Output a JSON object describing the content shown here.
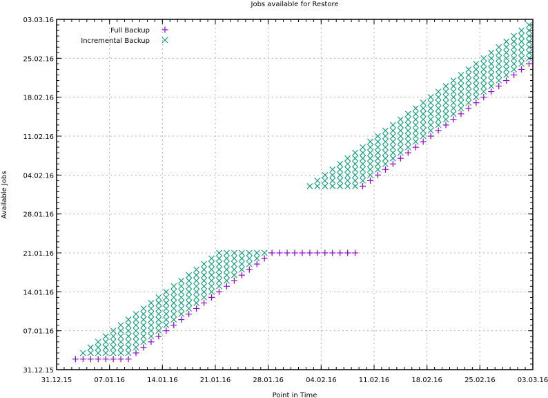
{
  "chart_data": {
    "type": "scatter",
    "title": "Jobs available for Restore",
    "xlabel": "Point in Time",
    "ylabel": "Available Jobs",
    "x_unit": "days since 31.12.15",
    "y_unit": "days since 31.12.15",
    "xlim": [
      0,
      63
    ],
    "ylim": [
      0,
      63
    ],
    "grid": true,
    "legend_position": "top-left",
    "x_ticks": [
      {
        "value": 0,
        "label": "31.12.15"
      },
      {
        "value": 7,
        "label": "07.01.16"
      },
      {
        "value": 14,
        "label": "14.01.16"
      },
      {
        "value": 21,
        "label": "21.01.16"
      },
      {
        "value": 28,
        "label": "28.01.16"
      },
      {
        "value": 35,
        "label": "04.02.16"
      },
      {
        "value": 42,
        "label": "11.02.16"
      },
      {
        "value": 49,
        "label": "18.02.16"
      },
      {
        "value": 56,
        "label": "25.02.16"
      },
      {
        "value": 63,
        "label": "03.03.16"
      }
    ],
    "y_ticks": [
      {
        "value": 0,
        "label": "31.12.15"
      },
      {
        "value": 7,
        "label": "07.01.16"
      },
      {
        "value": 14,
        "label": "14.01.16"
      },
      {
        "value": 21,
        "label": "21.01.16"
      },
      {
        "value": 28,
        "label": "28.01.16"
      },
      {
        "value": 35,
        "label": "04.02.16"
      },
      {
        "value": 42,
        "label": "11.02.16"
      },
      {
        "value": 49,
        "label": "18.02.16"
      },
      {
        "value": 56,
        "label": "25.02.16"
      },
      {
        "value": 63,
        "label": "03.03.16"
      }
    ],
    "series": [
      {
        "name": "Full Backup",
        "marker": "plus",
        "color": "#9400d3",
        "points": [
          [
            2.5,
            1.9
          ],
          [
            3.5,
            1.9
          ],
          [
            4.5,
            1.9
          ],
          [
            5.5,
            1.9
          ],
          [
            6.5,
            1.9
          ],
          [
            7.5,
            1.9
          ],
          [
            8.5,
            1.9
          ],
          [
            9.5,
            1.9
          ],
          [
            10.5,
            3
          ],
          [
            11.5,
            4
          ],
          [
            12.5,
            5
          ],
          [
            13.5,
            6
          ],
          [
            14.5,
            7
          ],
          [
            15.5,
            8
          ],
          [
            16.5,
            9
          ],
          [
            17.5,
            10
          ],
          [
            18.5,
            11
          ],
          [
            19.5,
            12
          ],
          [
            20.5,
            13
          ],
          [
            21.5,
            14
          ],
          [
            22.5,
            15
          ],
          [
            23.5,
            16
          ],
          [
            24.5,
            17
          ],
          [
            25.5,
            18
          ],
          [
            26.5,
            19
          ],
          [
            27.5,
            20
          ],
          [
            28.5,
            21
          ],
          [
            29.5,
            21
          ],
          [
            30.5,
            21
          ],
          [
            31.5,
            21
          ],
          [
            32.5,
            21
          ],
          [
            33.5,
            21
          ],
          [
            34.5,
            21
          ],
          [
            35.5,
            21
          ],
          [
            36.5,
            21
          ],
          [
            37.5,
            21
          ],
          [
            38.5,
            21
          ],
          [
            39.5,
            21
          ],
          [
            40.5,
            33
          ],
          [
            41.5,
            34
          ],
          [
            42.5,
            35
          ],
          [
            43.5,
            36
          ],
          [
            44.5,
            37
          ],
          [
            45.5,
            38
          ],
          [
            46.5,
            39
          ],
          [
            47.5,
            40
          ],
          [
            48.5,
            41
          ],
          [
            49.5,
            42
          ],
          [
            50.5,
            43
          ],
          [
            51.5,
            44
          ],
          [
            52.5,
            45
          ],
          [
            53.5,
            46
          ],
          [
            54.5,
            47
          ],
          [
            55.5,
            48
          ],
          [
            56.5,
            49
          ],
          [
            57.5,
            50
          ],
          [
            58.5,
            51
          ],
          [
            59.5,
            52
          ],
          [
            60.5,
            53
          ],
          [
            61.5,
            54
          ],
          [
            62.5,
            55
          ]
        ]
      },
      {
        "name": "Incremental Backup",
        "marker": "cross",
        "color": "#009e73",
        "columns_note": "each column: [x, bottom_y, top_y], one marker per day from bottom to top",
        "columns": [
          [
            3.5,
            2.9,
            3
          ],
          [
            4.5,
            2.9,
            4
          ],
          [
            5.5,
            2.9,
            5
          ],
          [
            6.5,
            2.9,
            6
          ],
          [
            7.5,
            2.9,
            7
          ],
          [
            8.5,
            2.9,
            8
          ],
          [
            9.5,
            2.9,
            9
          ],
          [
            10.5,
            4,
            10
          ],
          [
            11.5,
            5,
            11
          ],
          [
            12.5,
            6,
            12
          ],
          [
            13.5,
            7,
            13
          ],
          [
            14.5,
            8,
            14
          ],
          [
            15.5,
            9,
            15
          ],
          [
            16.5,
            10,
            16
          ],
          [
            17.5,
            11,
            17
          ],
          [
            18.5,
            12,
            18
          ],
          [
            19.5,
            13,
            19
          ],
          [
            20.5,
            14,
            20
          ],
          [
            21.5,
            15,
            21
          ],
          [
            22.5,
            16,
            21
          ],
          [
            23.5,
            17,
            21
          ],
          [
            24.5,
            18,
            21
          ],
          [
            25.5,
            19,
            21
          ],
          [
            26.5,
            20,
            21
          ],
          [
            27.5,
            21,
            21
          ],
          [
            33.5,
            33,
            33
          ],
          [
            34.5,
            33,
            34
          ],
          [
            35.5,
            33,
            35
          ],
          [
            36.5,
            33,
            36
          ],
          [
            37.5,
            33,
            37
          ],
          [
            38.5,
            33,
            38
          ],
          [
            39.5,
            33,
            39
          ],
          [
            40.5,
            34,
            40
          ],
          [
            41.5,
            35,
            41
          ],
          [
            42.5,
            36,
            42
          ],
          [
            43.5,
            37,
            43
          ],
          [
            44.5,
            38,
            44
          ],
          [
            45.5,
            39,
            45
          ],
          [
            46.5,
            40,
            46
          ],
          [
            47.5,
            41,
            47
          ],
          [
            48.5,
            42,
            48
          ],
          [
            49.5,
            43,
            49
          ],
          [
            50.5,
            44,
            50
          ],
          [
            51.5,
            45,
            51
          ],
          [
            52.5,
            46,
            52
          ],
          [
            53.5,
            47,
            53
          ],
          [
            54.5,
            48,
            54
          ],
          [
            55.5,
            49,
            55
          ],
          [
            56.5,
            50,
            56
          ],
          [
            57.5,
            51,
            57
          ],
          [
            58.5,
            52,
            58
          ],
          [
            59.5,
            53,
            59
          ],
          [
            60.5,
            54,
            60
          ],
          [
            61.5,
            55,
            61
          ],
          [
            62.5,
            56,
            62
          ]
        ]
      }
    ]
  },
  "legend": {
    "full_label": "Full Backup",
    "incremental_label": "Incremental Backup"
  },
  "colors": {
    "full": "#9400d3",
    "incremental": "#009e73",
    "grid": "#b0b0b0",
    "axis": "#000000"
  }
}
